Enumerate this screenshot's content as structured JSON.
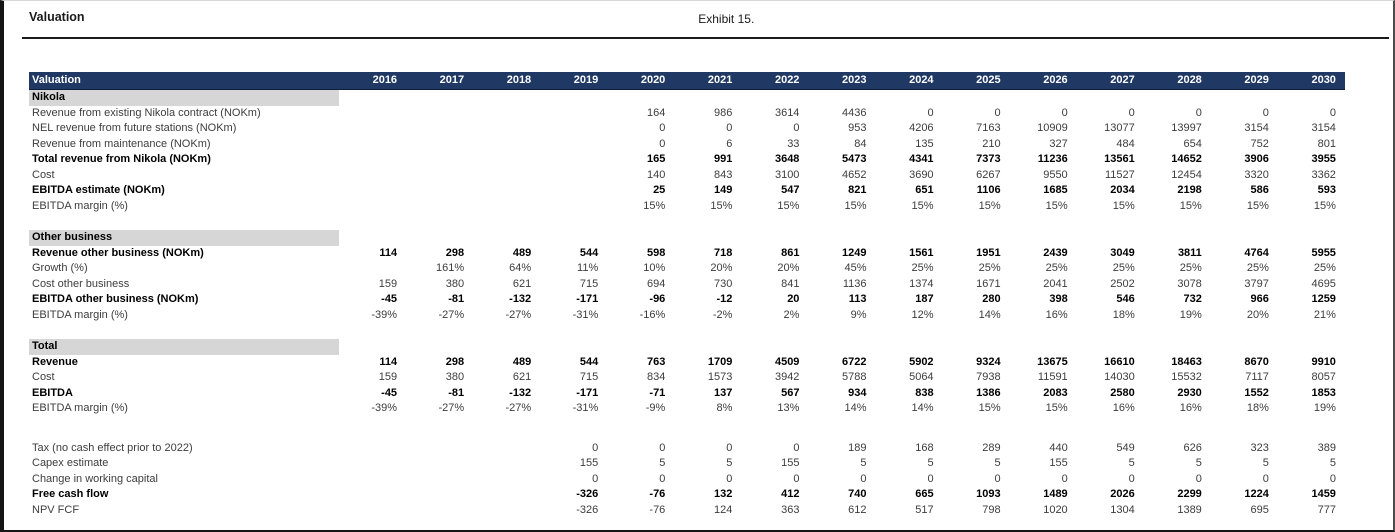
{
  "page": {
    "title": "Valuation",
    "exhibit": "Exhibit 15."
  },
  "colors": {
    "header_bg": "#1F3864",
    "header_text": "#FFFFFF",
    "section_band": "#D6D6D6",
    "frame": "#151515"
  },
  "table": {
    "header": {
      "label": "Valuation",
      "years": [
        "2016",
        "2017",
        "2018",
        "2019",
        "2020",
        "2021",
        "2022",
        "2023",
        "2024",
        "2025",
        "2026",
        "2027",
        "2028",
        "2029",
        "2030"
      ]
    },
    "sections": [
      {
        "name": "Nikola",
        "spacer": 0,
        "rows": [
          {
            "label": "Revenue from existing Nikola contract (NOKm)",
            "bold": false,
            "values": [
              "",
              "",
              "",
              "",
              "164",
              "986",
              "3614",
              "4436",
              "0",
              "0",
              "0",
              "0",
              "0",
              "0",
              "0"
            ]
          },
          {
            "label": "NEL revenue from future stations (NOKm)",
            "bold": false,
            "values": [
              "",
              "",
              "",
              "",
              "0",
              "0",
              "0",
              "953",
              "4206",
              "7163",
              "10909",
              "13077",
              "13997",
              "3154",
              "3154"
            ]
          },
          {
            "label": "Revenue from maintenance (NOKm)",
            "bold": false,
            "values": [
              "",
              "",
              "",
              "",
              "0",
              "6",
              "33",
              "84",
              "135",
              "210",
              "327",
              "484",
              "654",
              "752",
              "801"
            ]
          },
          {
            "label": "Total revenue from Nikola (NOKm)",
            "bold": true,
            "values": [
              "",
              "",
              "",
              "",
              "165",
              "991",
              "3648",
              "5473",
              "4341",
              "7373",
              "11236",
              "13561",
              "14652",
              "3906",
              "3955"
            ]
          },
          {
            "label": "Cost",
            "bold": false,
            "values": [
              "",
              "",
              "",
              "",
              "140",
              "843",
              "3100",
              "4652",
              "3690",
              "6267",
              "9550",
              "11527",
              "12454",
              "3320",
              "3362"
            ]
          },
          {
            "label": "EBITDA estimate (NOKm)",
            "bold": true,
            "values": [
              "",
              "",
              "",
              "",
              "25",
              "149",
              "547",
              "821",
              "651",
              "1106",
              "1685",
              "2034",
              "2198",
              "586",
              "593"
            ]
          },
          {
            "label": "EBITDA margin (%)",
            "bold": false,
            "values": [
              "",
              "",
              "",
              "",
              "15%",
              "15%",
              "15%",
              "15%",
              "15%",
              "15%",
              "15%",
              "15%",
              "15%",
              "15%",
              "15%"
            ]
          }
        ]
      },
      {
        "name": "Other business",
        "spacer": 16,
        "rows": [
          {
            "label": "Revenue other business (NOKm)",
            "bold": true,
            "values": [
              "114",
              "298",
              "489",
              "544",
              "598",
              "718",
              "861",
              "1249",
              "1561",
              "1951",
              "2439",
              "3049",
              "3811",
              "4764",
              "5955"
            ]
          },
          {
            "label": "Growth (%)",
            "bold": false,
            "values": [
              "",
              "161%",
              "64%",
              "11%",
              "10%",
              "20%",
              "20%",
              "45%",
              "25%",
              "25%",
              "25%",
              "25%",
              "25%",
              "25%",
              "25%"
            ]
          },
          {
            "label": "Cost other business",
            "bold": false,
            "values": [
              "159",
              "380",
              "621",
              "715",
              "694",
              "730",
              "841",
              "1136",
              "1374",
              "1671",
              "2041",
              "2502",
              "3078",
              "3797",
              "4695"
            ]
          },
          {
            "label": "EBITDA other business (NOKm)",
            "bold": true,
            "values": [
              "-45",
              "-81",
              "-132",
              "-171",
              "-96",
              "-12",
              "20",
              "113",
              "187",
              "280",
              "398",
              "546",
              "732",
              "966",
              "1259"
            ]
          },
          {
            "label": "EBITDA margin (%)",
            "bold": false,
            "values": [
              "-39%",
              "-27%",
              "-27%",
              "-31%",
              "-16%",
              "-2%",
              "2%",
              "9%",
              "12%",
              "14%",
              "16%",
              "18%",
              "19%",
              "20%",
              "21%"
            ]
          }
        ]
      },
      {
        "name": "Total",
        "spacer": 16,
        "rows": [
          {
            "label": "Revenue",
            "bold": true,
            "values": [
              "114",
              "298",
              "489",
              "544",
              "763",
              "1709",
              "4509",
              "6722",
              "5902",
              "9324",
              "13675",
              "16610",
              "18463",
              "8670",
              "9910"
            ]
          },
          {
            "label": "Cost",
            "bold": false,
            "values": [
              "159",
              "380",
              "621",
              "715",
              "834",
              "1573",
              "3942",
              "5788",
              "5064",
              "7938",
              "11591",
              "14030",
              "15532",
              "7117",
              "8057"
            ]
          },
          {
            "label": "EBITDA",
            "bold": true,
            "values": [
              "-45",
              "-81",
              "-132",
              "-171",
              "-71",
              "137",
              "567",
              "934",
              "838",
              "1386",
              "2083",
              "2580",
              "2930",
              "1552",
              "1853"
            ]
          },
          {
            "label": "EBITDA margin (%)",
            "bold": false,
            "values": [
              "-39%",
              "-27%",
              "-27%",
              "-31%",
              "-9%",
              "8%",
              "13%",
              "14%",
              "14%",
              "15%",
              "15%",
              "16%",
              "16%",
              "18%",
              "19%"
            ]
          }
        ]
      },
      {
        "name": "",
        "spacer": 24,
        "rows": [
          {
            "label": "Tax (no cash effect prior to 2022)",
            "bold": false,
            "values": [
              "",
              "",
              "",
              "0",
              "0",
              "0",
              "0",
              "189",
              "168",
              "289",
              "440",
              "549",
              "626",
              "323",
              "389"
            ]
          },
          {
            "label": "Capex estimate",
            "bold": false,
            "values": [
              "",
              "",
              "",
              "155",
              "5",
              "5",
              "155",
              "5",
              "5",
              "5",
              "155",
              "5",
              "5",
              "5",
              "5"
            ]
          },
          {
            "label": "Change in working capital",
            "bold": false,
            "values": [
              "",
              "",
              "",
              "0",
              "0",
              "0",
              "0",
              "0",
              "0",
              "0",
              "0",
              "0",
              "0",
              "0",
              "0"
            ]
          },
          {
            "label": "Free cash flow",
            "bold": true,
            "values": [
              "",
              "",
              "",
              "-326",
              "-76",
              "132",
              "412",
              "740",
              "665",
              "1093",
              "1489",
              "2026",
              "2299",
              "1224",
              "1459"
            ]
          },
          {
            "label": "NPV FCF",
            "bold": false,
            "values": [
              "",
              "",
              "",
              "-326",
              "-76",
              "124",
              "363",
              "612",
              "517",
              "798",
              "1020",
              "1304",
              "1389",
              "695",
              "777"
            ]
          }
        ]
      }
    ]
  }
}
